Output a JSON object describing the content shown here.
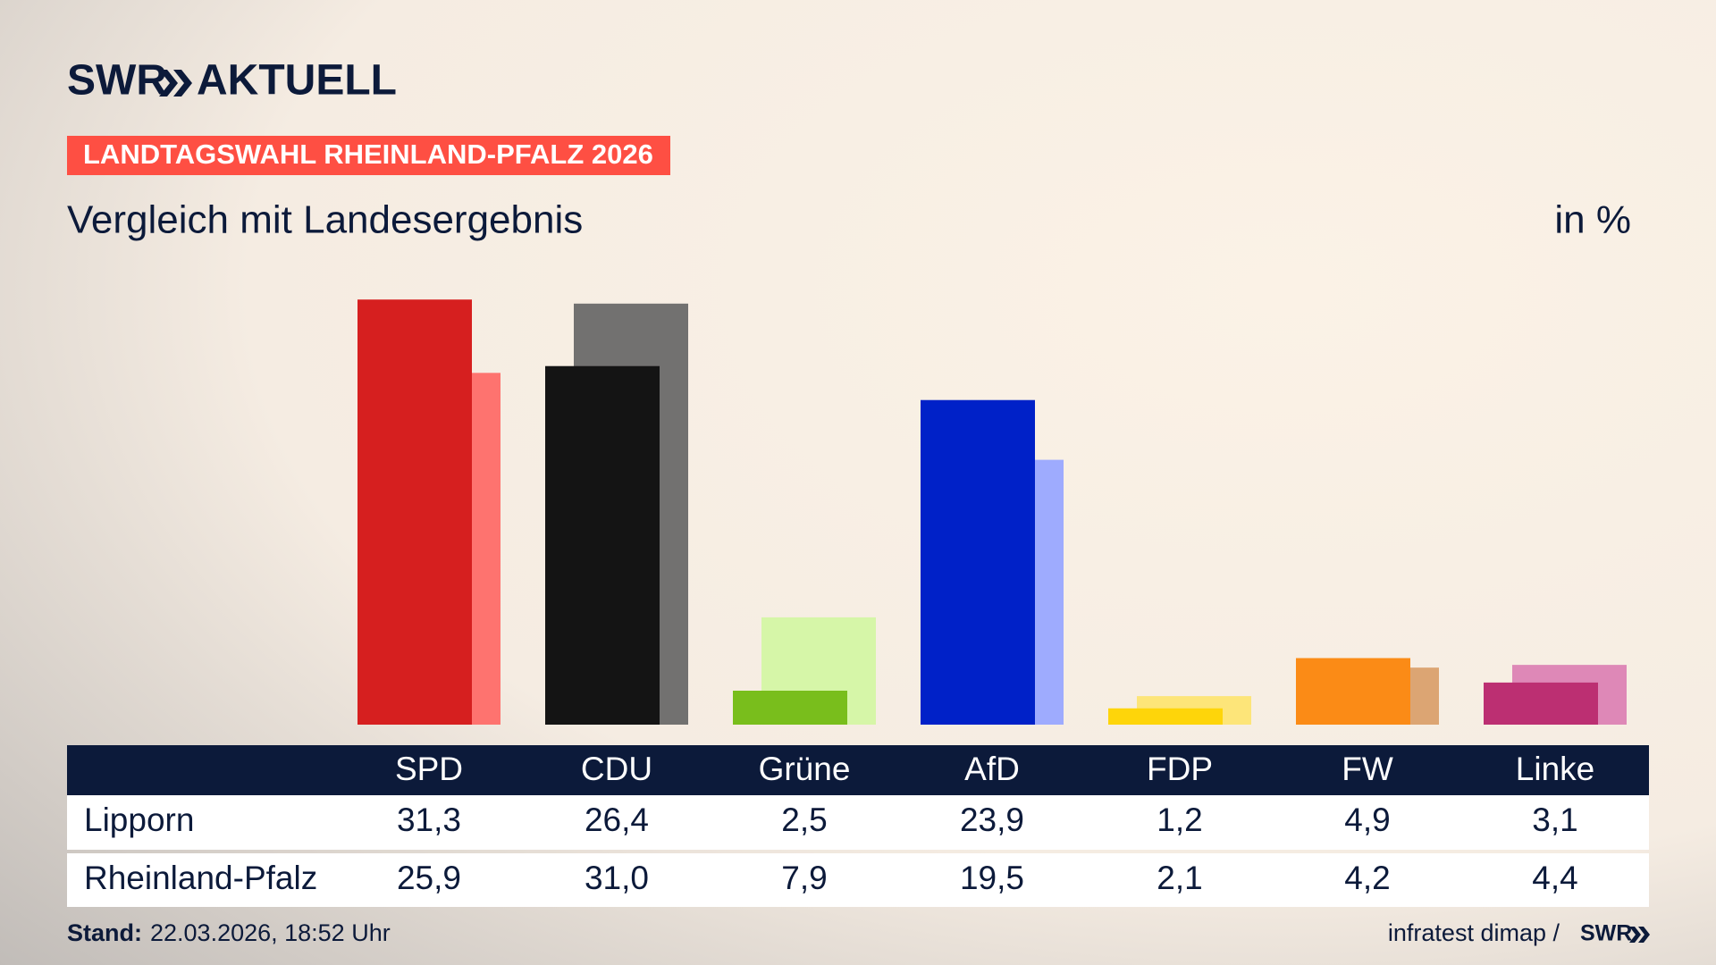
{
  "header": {
    "logo": "SWR",
    "logo_suffix": "AKTUELL",
    "badge": "LANDTAGSWAHL RHEINLAND-PFALZ 2026"
  },
  "chart_data": {
    "type": "bar",
    "title": "Vergleich mit Landesergebnis",
    "unit_label": "in %",
    "categories": [
      "SPD",
      "CDU",
      "Grüne",
      "AfD",
      "FDP",
      "FW",
      "Linke"
    ],
    "series": [
      {
        "name": "Lipporn",
        "colors": [
          "#d61f1f",
          "#141414",
          "#79be1c",
          "#0021c8",
          "#fed50a",
          "#fb8b16",
          "#bc2f72"
        ],
        "values": [
          31.3,
          26.4,
          2.5,
          23.9,
          1.2,
          4.9,
          3.1
        ],
        "value_labels": [
          "31,3",
          "26,4",
          "2,5",
          "23,9",
          "1,2",
          "4,9",
          "3,1"
        ]
      },
      {
        "name": "Rheinland-Pfalz",
        "colors": [
          "#fe736f",
          "#727170",
          "#d6f6a8",
          "#9eabfe",
          "#fde579",
          "#dca573",
          "#de88b7"
        ],
        "values": [
          25.9,
          31.0,
          7.9,
          19.5,
          2.1,
          4.2,
          4.4
        ],
        "value_labels": [
          "25,9",
          "31,0",
          "7,9",
          "19,5",
          "2,1",
          "4,2",
          "4,4"
        ]
      }
    ],
    "ylim": [
      0,
      35
    ],
    "grid": false
  },
  "footer": {
    "stand_label": "Stand:",
    "stand": "22.03.2026, 18:52 Uhr",
    "source": "infratest dimap /",
    "source_logo": "SWR"
  }
}
